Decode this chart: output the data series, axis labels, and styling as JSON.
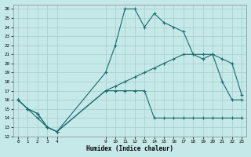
{
  "title": "",
  "xlabel": "Humidex (Indice chaleur)",
  "background_color": "#c5e8e8",
  "grid_color": "#a8cccc",
  "line_color": "#1a6b6b",
  "ylim": [
    12,
    26.5
  ],
  "xlim": [
    -0.5,
    23.5
  ],
  "yticks": [
    12,
    13,
    14,
    15,
    16,
    17,
    18,
    19,
    20,
    21,
    22,
    23,
    24,
    25,
    26
  ],
  "xticks": [
    0,
    1,
    2,
    3,
    4,
    9,
    10,
    11,
    12,
    13,
    14,
    15,
    16,
    17,
    18,
    19,
    20,
    21,
    22,
    23
  ],
  "series": [
    {
      "x": [
        0,
        1,
        2,
        3,
        4,
        9,
        10,
        11,
        12,
        13,
        14,
        15,
        16,
        17,
        18,
        19,
        20,
        21,
        22,
        23
      ],
      "y": [
        16,
        15,
        14,
        13,
        12.5,
        19,
        22,
        26,
        26,
        24,
        25.5,
        24.5,
        24,
        23.5,
        21,
        20.5,
        21,
        18,
        16,
        16
      ]
    },
    {
      "x": [
        0,
        1,
        2,
        3,
        4,
        9,
        10,
        11,
        12,
        13,
        14,
        15,
        16,
        17,
        18,
        19,
        20,
        21,
        22,
        23
      ],
      "y": [
        16,
        15,
        14.5,
        13,
        12.5,
        17,
        17,
        17,
        17,
        17,
        14,
        14,
        14,
        14,
        14,
        14,
        14,
        14,
        14,
        14
      ]
    },
    {
      "x": [
        0,
        1,
        2,
        3,
        4,
        9,
        10,
        11,
        12,
        13,
        14,
        15,
        16,
        17,
        18,
        19,
        20,
        21,
        22,
        23
      ],
      "y": [
        16,
        15,
        14.5,
        13,
        12.5,
        17,
        17.5,
        18,
        18.5,
        19,
        19.5,
        20,
        20.5,
        21,
        21,
        21,
        21,
        20.5,
        20,
        16.5
      ]
    }
  ]
}
